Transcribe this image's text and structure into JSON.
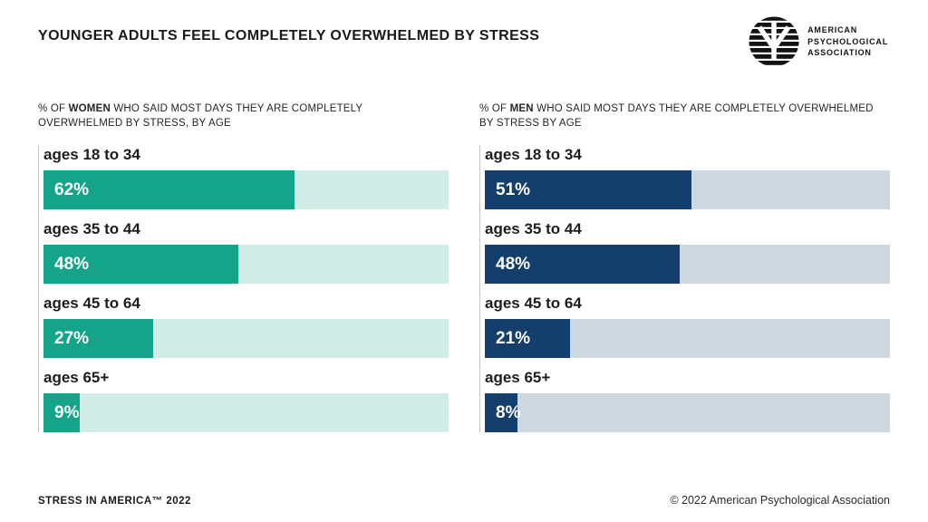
{
  "header": {
    "title": "YOUNGER ADULTS FEEL COMPLETELY OVERWHELMED BY STRESS",
    "logo_icon": "apa-logo-icon",
    "logo_lines": [
      "AMERICAN",
      "PSYCHOLOGICAL",
      "ASSOCIATION"
    ]
  },
  "chart_data": [
    {
      "type": "bar",
      "orientation": "horizontal",
      "subtitle_prefix": "% OF ",
      "subtitle_bold": "WOMEN",
      "subtitle_suffix": " WHO SAID MOST DAYS THEY ARE COMPLETELY OVERWHELMED BY STRESS, BY AGE",
      "categories": [
        "ages 18 to 34",
        "ages 35 to 44",
        "ages 45 to 64",
        "ages 65+"
      ],
      "values": [
        62,
        48,
        27,
        9
      ],
      "value_labels": [
        "62%",
        "48%",
        "27%",
        "9%"
      ],
      "xlim": [
        0,
        100
      ],
      "bar_color": "#15a389",
      "track_color": "#d2ede7",
      "grid": false,
      "legend": false
    },
    {
      "type": "bar",
      "orientation": "horizontal",
      "subtitle_prefix": "% OF ",
      "subtitle_bold": "MEN",
      "subtitle_suffix": " WHO SAID MOST DAYS THEY ARE COMPLETELY OVERWHELMED BY STRESS BY AGE",
      "categories": [
        "ages 18 to 34",
        "ages 35 to 44",
        "ages 45 to 64",
        "ages 65+"
      ],
      "values": [
        51,
        48,
        21,
        8
      ],
      "value_labels": [
        "51%",
        "48%",
        "21%",
        "8%"
      ],
      "xlim": [
        0,
        100
      ],
      "bar_color": "#143f6d",
      "track_color": "#cdd8e0",
      "grid": false,
      "legend": false
    }
  ],
  "footer": {
    "left": "STRESS IN AMERICA™ 2022",
    "right": "© 2022 American Psychological Association"
  }
}
